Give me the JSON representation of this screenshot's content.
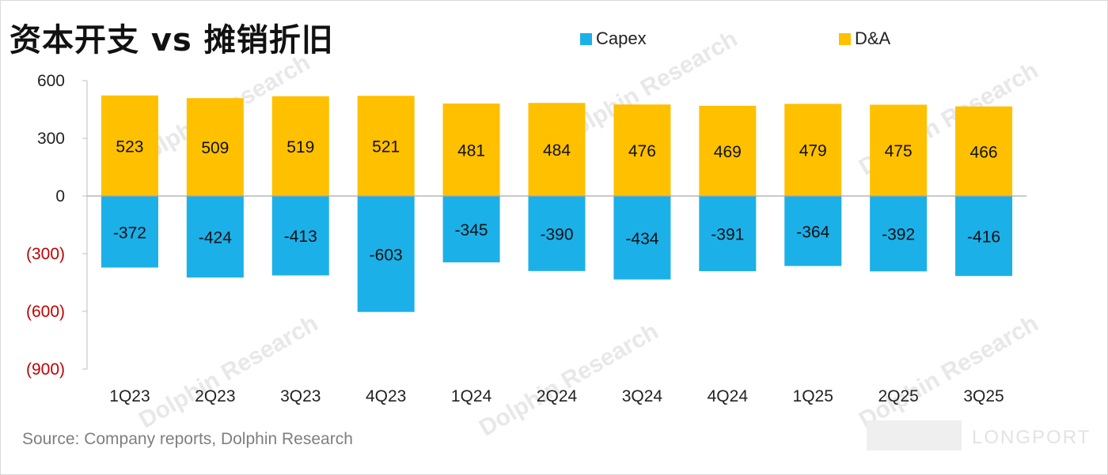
{
  "title": "资本开支 vs 摊销折旧",
  "source": "Source: Company reports, Dolphin Research",
  "watermark": "Dolphin Research",
  "brand": "LONGPORT",
  "colors": {
    "capex": "#1CB0E8",
    "da": "#FFC000",
    "negative_tick": "#C00000",
    "tick": "#222222"
  },
  "chart_data": {
    "type": "bar",
    "stacked": true,
    "categories": [
      "1Q23",
      "2Q23",
      "3Q23",
      "4Q23",
      "1Q24",
      "2Q24",
      "3Q24",
      "4Q24",
      "1Q25",
      "2Q25",
      "3Q25"
    ],
    "series": [
      {
        "name": "Capex",
        "color": "#1CB0E8",
        "values": [
          -372,
          -424,
          -413,
          -603,
          -345,
          -390,
          -434,
          -391,
          -364,
          -392,
          -416
        ]
      },
      {
        "name": "D&A",
        "color": "#FFC000",
        "values": [
          523,
          509,
          519,
          521,
          481,
          484,
          476,
          469,
          479,
          475,
          466
        ]
      }
    ],
    "yticks": [
      600,
      300,
      0,
      -300,
      -600,
      -900
    ],
    "ytick_labels": [
      "600",
      "300",
      "0",
      "(300)",
      "(600)",
      "(900)"
    ],
    "ylim": [
      -900,
      600
    ],
    "legend_position": "top"
  }
}
